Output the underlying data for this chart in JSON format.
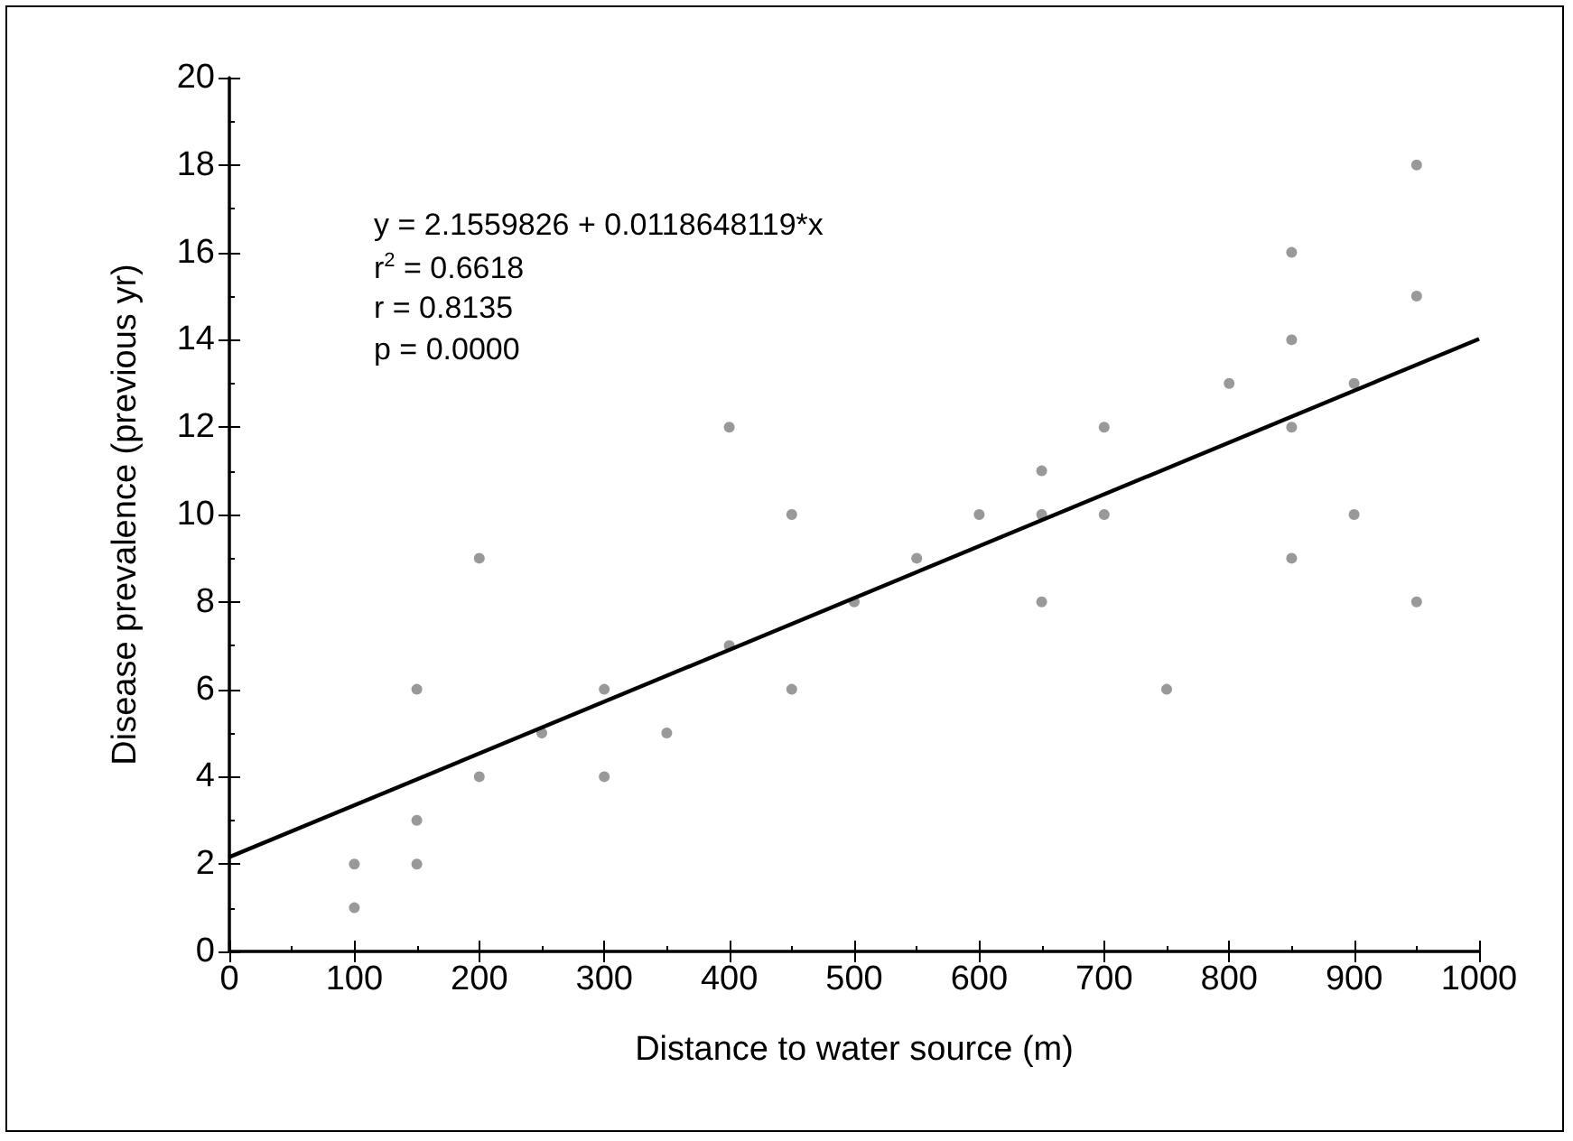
{
  "chart_data": {
    "type": "scatter",
    "xlabel": "Distance to water source (m)",
    "ylabel": "Disease prevalence (previous yr)",
    "annotations": [
      "y = 2.1559826 + 0.0118648119*x",
      "r$^{2}$ = 0.6618",
      "r = 0.8135",
      "p = 0.0000"
    ],
    "xlim": [
      0,
      1000
    ],
    "xticks": [
      0,
      100,
      200,
      300,
      400,
      500,
      600,
      700,
      800,
      900,
      1000
    ],
    "ylim": [
      0,
      20
    ],
    "yticks": [
      0,
      2,
      4,
      6,
      8,
      10,
      12,
      14,
      16,
      18,
      20
    ],
    "grid": false,
    "marker": "circle",
    "series": [
      {
        "color": "#808080",
        "x": [
          100,
          100,
          150,
          150,
          150,
          200,
          200,
          250,
          300,
          300,
          350,
          400,
          400,
          450,
          450,
          500,
          550,
          600,
          650,
          650,
          650,
          700,
          700,
          750,
          800,
          850,
          850,
          850,
          850,
          900,
          900,
          950,
          950,
          950
        ],
        "values": [
          1,
          2,
          2,
          3,
          6,
          4,
          9,
          5,
          4,
          6,
          5,
          7,
          12,
          6,
          10,
          8,
          9,
          10,
          8,
          10,
          11,
          10,
          12,
          6,
          13,
          9,
          12,
          14,
          16,
          10,
          13,
          8,
          15,
          18
        ]
      },
      {
        "type": "line",
        "color": "#000000",
        "line_style": "solid",
        "marker": "none",
        "x": [
          0,
          1000
        ],
        "values": [
          2.16,
          14.02
        ]
      }
    ]
  }
}
